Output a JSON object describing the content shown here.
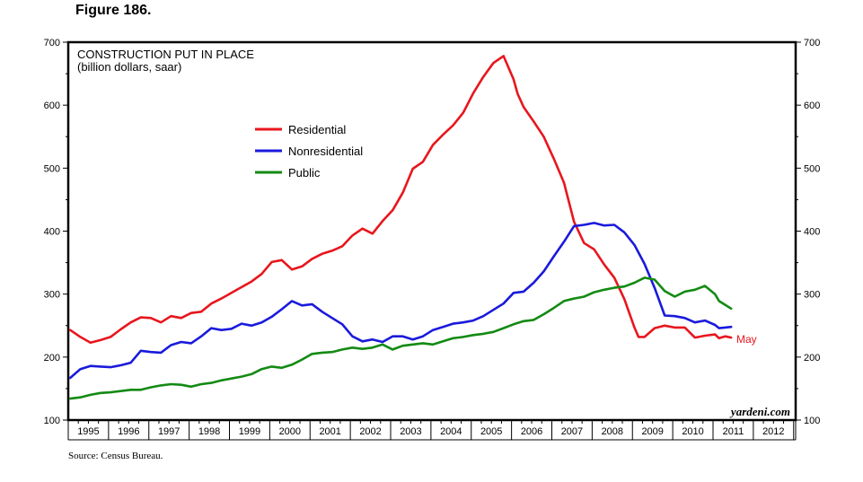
{
  "figure_label": "Figure 186.",
  "source": "Source: Census Bureau.",
  "watermark": "yardeni.com",
  "chart_data": {
    "type": "line",
    "title": "CONSTRUCTION PUT IN PLACE",
    "subtitle": "(billion dollars, saar)",
    "xlabel": "",
    "ylabel": "",
    "xlim": [
      1994.95,
      2013.0
    ],
    "ylim": [
      100,
      700
    ],
    "y_ticks": [
      100,
      200,
      300,
      400,
      500,
      600,
      700
    ],
    "x_tick_labels": [
      "1995",
      "1996",
      "1997",
      "1998",
      "1999",
      "2000",
      "2001",
      "2002",
      "2003",
      "2004",
      "2005",
      "2006",
      "2007",
      "2008",
      "2009",
      "2010",
      "2011",
      "2012"
    ],
    "legend_position": "upper-left inside",
    "grid": false,
    "end_annotation": "May",
    "series": [
      {
        "name": "Residential",
        "color": "#e8161d",
        "x": [
          1995.0,
          1995.25,
          1995.5,
          1995.75,
          1996.0,
          1996.25,
          1996.5,
          1996.75,
          1997.0,
          1997.25,
          1997.5,
          1997.75,
          1998.0,
          1998.25,
          1998.5,
          1998.75,
          1999.0,
          1999.25,
          1999.5,
          1999.75,
          2000.0,
          2000.25,
          2000.5,
          2000.75,
          2001.0,
          2001.25,
          2001.5,
          2001.75,
          2002.0,
          2002.25,
          2002.5,
          2002.75,
          2003.0,
          2003.25,
          2003.5,
          2003.75,
          2004.0,
          2004.25,
          2004.5,
          2004.75,
          2005.0,
          2005.25,
          2005.5,
          2005.75,
          2006.0,
          2006.1,
          2006.25,
          2006.5,
          2006.75,
          2007.0,
          2007.25,
          2007.5,
          2007.75,
          2008.0,
          2008.25,
          2008.5,
          2008.75,
          2009.0,
          2009.1,
          2009.25,
          2009.5,
          2009.75,
          2010.0,
          2010.25,
          2010.5,
          2010.75,
          2011.0,
          2011.1,
          2011.25,
          2011.4
        ],
        "values": [
          243,
          232,
          223,
          227,
          232,
          244,
          255,
          263,
          262,
          255,
          265,
          262,
          270,
          272,
          285,
          293,
          302,
          311,
          320,
          332,
          351,
          354,
          339,
          344,
          356,
          364,
          369,
          376,
          393,
          404,
          396,
          416,
          433,
          461,
          499,
          510,
          537,
          553,
          568,
          588,
          619,
          645,
          667,
          678,
          641,
          618,
          597,
          574,
          550,
          515,
          477,
          415,
          381,
          371,
          347,
          326,
          292,
          247,
          232,
          232,
          246,
          250,
          247,
          247,
          231,
          234,
          236,
          230,
          233,
          231
        ]
      },
      {
        "name": "Nonresidential",
        "color": "#1a1adc",
        "x": [
          1995.0,
          1995.25,
          1995.5,
          1995.75,
          1996.0,
          1996.25,
          1996.5,
          1996.75,
          1997.0,
          1997.25,
          1997.5,
          1997.75,
          1998.0,
          1998.25,
          1998.5,
          1998.75,
          1999.0,
          1999.25,
          1999.5,
          1999.75,
          2000.0,
          2000.25,
          2000.5,
          2000.75,
          2001.0,
          2001.25,
          2001.5,
          2001.75,
          2002.0,
          2002.25,
          2002.5,
          2002.75,
          2003.0,
          2003.25,
          2003.5,
          2003.75,
          2004.0,
          2004.25,
          2004.5,
          2004.75,
          2005.0,
          2005.25,
          2005.5,
          2005.75,
          2006.0,
          2006.25,
          2006.5,
          2006.75,
          2007.0,
          2007.25,
          2007.5,
          2007.75,
          2008.0,
          2008.25,
          2008.5,
          2008.75,
          2009.0,
          2009.25,
          2009.5,
          2009.75,
          2010.0,
          2010.25,
          2010.5,
          2010.75,
          2011.0,
          2011.1,
          2011.25,
          2011.4
        ],
        "values": [
          167,
          181,
          186,
          185,
          184,
          187,
          191,
          210,
          208,
          207,
          219,
          224,
          222,
          233,
          246,
          243,
          245,
          253,
          250,
          255,
          264,
          276,
          289,
          282,
          284,
          272,
          262,
          252,
          233,
          225,
          228,
          224,
          233,
          233,
          228,
          233,
          243,
          248,
          253,
          255,
          258,
          265,
          275,
          285,
          302,
          304,
          318,
          336,
          360,
          383,
          408,
          410,
          413,
          409,
          410,
          398,
          378,
          348,
          310,
          266,
          265,
          262,
          255,
          258,
          251,
          246,
          247,
          248
        ]
      },
      {
        "name": "Public",
        "color": "#138a13",
        "x": [
          1995.0,
          1995.25,
          1995.5,
          1995.75,
          1996.0,
          1996.25,
          1996.5,
          1996.75,
          1997.0,
          1997.25,
          1997.5,
          1997.75,
          1998.0,
          1998.25,
          1998.5,
          1998.75,
          1999.0,
          1999.25,
          1999.5,
          1999.75,
          2000.0,
          2000.25,
          2000.5,
          2000.75,
          2001.0,
          2001.25,
          2001.5,
          2001.75,
          2002.0,
          2002.25,
          2002.5,
          2002.75,
          2003.0,
          2003.25,
          2003.5,
          2003.75,
          2004.0,
          2004.25,
          2004.5,
          2004.75,
          2005.0,
          2005.25,
          2005.5,
          2005.75,
          2006.0,
          2006.25,
          2006.5,
          2006.75,
          2007.0,
          2007.25,
          2007.5,
          2007.75,
          2008.0,
          2008.25,
          2008.5,
          2008.75,
          2009.0,
          2009.25,
          2009.5,
          2009.75,
          2010.0,
          2010.25,
          2010.5,
          2010.75,
          2011.0,
          2011.1,
          2011.25,
          2011.4
        ],
        "values": [
          134,
          136,
          140,
          143,
          144,
          146,
          148,
          148,
          152,
          155,
          157,
          156,
          153,
          157,
          159,
          163,
          166,
          169,
          173,
          181,
          185,
          183,
          188,
          196,
          205,
          207,
          208,
          212,
          215,
          213,
          215,
          220,
          212,
          218,
          220,
          222,
          220,
          225,
          230,
          232,
          235,
          237,
          240,
          246,
          252,
          257,
          259,
          268,
          278,
          289,
          293,
          296,
          303,
          307,
          310,
          312,
          318,
          326,
          323,
          305,
          296,
          304,
          307,
          313,
          300,
          289,
          283,
          277
        ]
      }
    ]
  }
}
